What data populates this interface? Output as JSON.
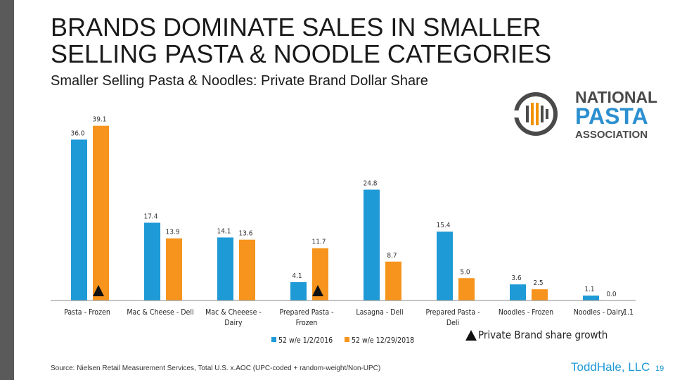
{
  "slide": {
    "title_line1": "BRANDS DOMINATE SALES IN SMALLER",
    "title_line2": "SELLING PASTA & NOODLE CATEGORIES",
    "subtitle": "Smaller Selling Pasta & Noodles: Private Brand Dollar Share",
    "source": "Source: Nielsen Retail Measurement Services, Total U.S. x.AOC (UPC-coded + random-weight/Non-UPC)",
    "footer_brand": "ToddHale, LLC",
    "page_number": "19"
  },
  "logo": {
    "line1": "NATIONAL",
    "line2": "PASTA",
    "line3": "ASSOCIATION",
    "color_dark": "#4a4a4a",
    "color_blue": "#2b8fd0",
    "color_orange": "#f39200"
  },
  "chart_data": {
    "type": "bar",
    "title": "Smaller Selling Pasta & Noodles: Private Brand Dollar Share",
    "xlabel": "",
    "ylabel": "",
    "ylim": [
      0,
      40
    ],
    "grid": false,
    "legend_position": "bottom",
    "categories": [
      "Pasta - Frozen",
      "Mac & Cheese - Deli",
      "Mac & Cheeese - Dairy",
      "Prepared Pasta - Frozen",
      "Lasagna - Deli",
      "Prepared Pasta - Deli",
      "Noodles - Frozen",
      "Noodles - Dairy"
    ],
    "series": [
      {
        "name": "52 w/e 1/2/2016",
        "color": "#1e9ad6",
        "values": [
          36.0,
          17.4,
          14.1,
          4.1,
          24.8,
          15.4,
          3.6,
          1.1
        ]
      },
      {
        "name": "52 w/e 12/29/2018",
        "color": "#f7941d",
        "values": [
          39.1,
          13.9,
          13.6,
          11.7,
          8.7,
          5.0,
          2.5,
          0.0
        ]
      }
    ],
    "value_labels": [
      [
        "36.0",
        "17.4",
        "14.1",
        "4.1",
        "24.8",
        "15.4",
        "3.6",
        "1.1"
      ],
      [
        "39.1",
        "13.9",
        "13.6",
        "11.7",
        "8.7",
        "5.0",
        "2.5",
        "0.0"
      ]
    ],
    "growth_markers": [
      0,
      3
    ],
    "growth_label": "Private Brand share growth",
    "extra_annotation": "1.1"
  }
}
